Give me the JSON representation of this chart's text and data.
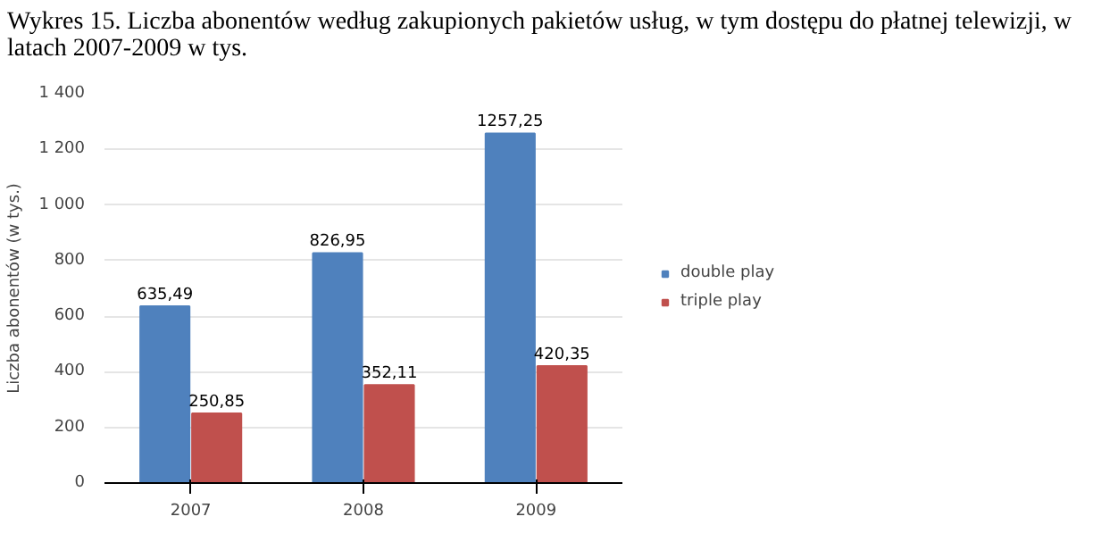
{
  "chart_data": {
    "type": "bar",
    "title": "Wykres 15. Liczba abonentów według zakupionych pakietów usług, w tym dostępu do płatnej telewizji, w latach 2007-2009 w tys.",
    "ylabel": "Liczba abonentów (w tys.)",
    "categories": [
      "2007",
      "2008",
      "2009"
    ],
    "series": [
      {
        "name": "double play",
        "color": "#4f81bd",
        "values": [
          635.49,
          826.95,
          1257.25
        ],
        "value_labels": [
          "635,49",
          "826,95",
          "1257,25"
        ]
      },
      {
        "name": "triple play",
        "color": "#c0504d",
        "values": [
          250.85,
          352.11,
          420.35
        ],
        "value_labels": [
          "250,85",
          "352,11",
          "420,35"
        ]
      }
    ],
    "ylim": [
      0,
      1400
    ],
    "yticks": [
      0,
      200,
      400,
      600,
      800,
      {
        "value": 1000,
        "label": "1 000"
      },
      {
        "value": 1200,
        "label": "1 200"
      },
      {
        "value": 1400,
        "label": "1 400"
      }
    ],
    "grid": "y",
    "legend": "right"
  }
}
